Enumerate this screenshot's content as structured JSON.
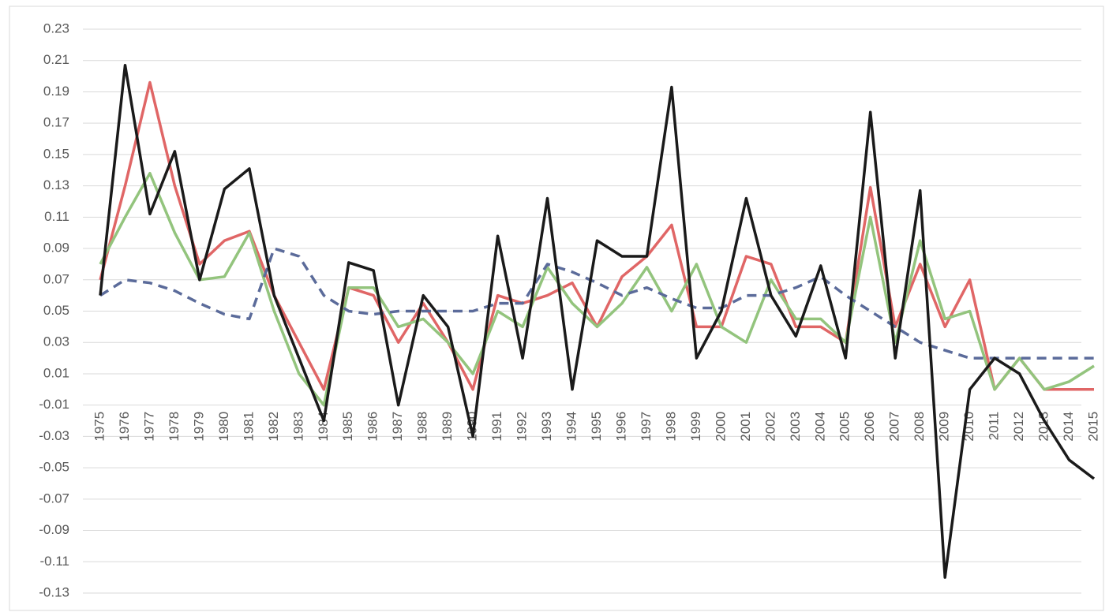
{
  "chart_data": {
    "type": "line",
    "categories": [
      "1975",
      "1976",
      "1977",
      "1978",
      "1979",
      "1980",
      "1981",
      "1982",
      "1983",
      "1984",
      "1985",
      "1986",
      "1987",
      "1988",
      "1989",
      "1990",
      "1991",
      "1992",
      "1993",
      "1994",
      "1995",
      "1996",
      "1997",
      "1998",
      "1999",
      "2000",
      "2001",
      "2002",
      "2003",
      "2004",
      "2005",
      "2006",
      "2007",
      "2008",
      "2009",
      "2010",
      "2011",
      "2012",
      "2013",
      "2014",
      "2015"
    ],
    "series": [
      {
        "color": "#e06666",
        "values": [
          0.07,
          0.13,
          0.196,
          0.13,
          0.08,
          0.095,
          0.101,
          0.06,
          0.03,
          0.0,
          0.065,
          0.06,
          0.03,
          0.055,
          0.03,
          0.0,
          0.06,
          0.055,
          0.06,
          0.068,
          0.04,
          0.072,
          0.085,
          0.105,
          0.04,
          0.04,
          0.085,
          0.08,
          0.04,
          0.04,
          0.03,
          0.129,
          0.04,
          0.08,
          0.04,
          0.07,
          0.0,
          0.02,
          0.0,
          0.0,
          0.0
        ]
      },
      {
        "color": "#93c47d",
        "values": [
          0.08,
          0.11,
          0.138,
          0.1,
          0.07,
          0.072,
          0.1,
          0.05,
          0.01,
          -0.01,
          0.065,
          0.065,
          0.04,
          0.045,
          0.03,
          0.01,
          0.05,
          0.04,
          0.078,
          0.055,
          0.04,
          0.055,
          0.078,
          0.05,
          0.08,
          0.04,
          0.03,
          0.07,
          0.045,
          0.045,
          0.03,
          0.11,
          0.03,
          0.095,
          0.045,
          0.05,
          0.0,
          0.02,
          0.0,
          0.005,
          0.015
        ]
      },
      {
        "color": "#5b6b9a",
        "dashed": true,
        "values": [
          0.06,
          0.07,
          0.068,
          0.063,
          0.055,
          0.048,
          0.045,
          0.09,
          0.085,
          0.06,
          0.05,
          0.048,
          0.05,
          0.05,
          0.05,
          0.05,
          0.055,
          0.055,
          0.08,
          0.075,
          0.068,
          0.06,
          0.065,
          0.058,
          0.052,
          0.052,
          0.06,
          0.06,
          0.065,
          0.072,
          0.06,
          0.05,
          0.04,
          0.03,
          0.025,
          0.02,
          0.02,
          0.02,
          0.02,
          0.02,
          0.02
        ]
      },
      {
        "color": "#1a1a1a",
        "values": [
          0.06,
          0.207,
          0.112,
          0.152,
          0.07,
          0.128,
          0.141,
          0.06,
          0.02,
          -0.02,
          0.081,
          0.076,
          -0.01,
          0.06,
          0.04,
          -0.03,
          0.098,
          0.02,
          0.122,
          0.0,
          0.095,
          0.085,
          0.085,
          0.193,
          0.02,
          0.05,
          0.122,
          0.06,
          0.034,
          0.079,
          0.02,
          0.177,
          0.02,
          0.127,
          -0.12,
          0.0,
          0.02,
          0.01,
          -0.02,
          -0.045,
          -0.057
        ]
      }
    ],
    "ylim": [
      -0.13,
      0.23
    ],
    "yticks": [
      -0.13,
      -0.11,
      -0.09,
      -0.07,
      -0.05,
      -0.03,
      -0.01,
      0.01,
      0.03,
      0.05,
      0.07,
      0.09,
      0.11,
      0.13,
      0.15,
      0.17,
      0.19,
      0.21,
      0.23
    ],
    "grid": true
  }
}
